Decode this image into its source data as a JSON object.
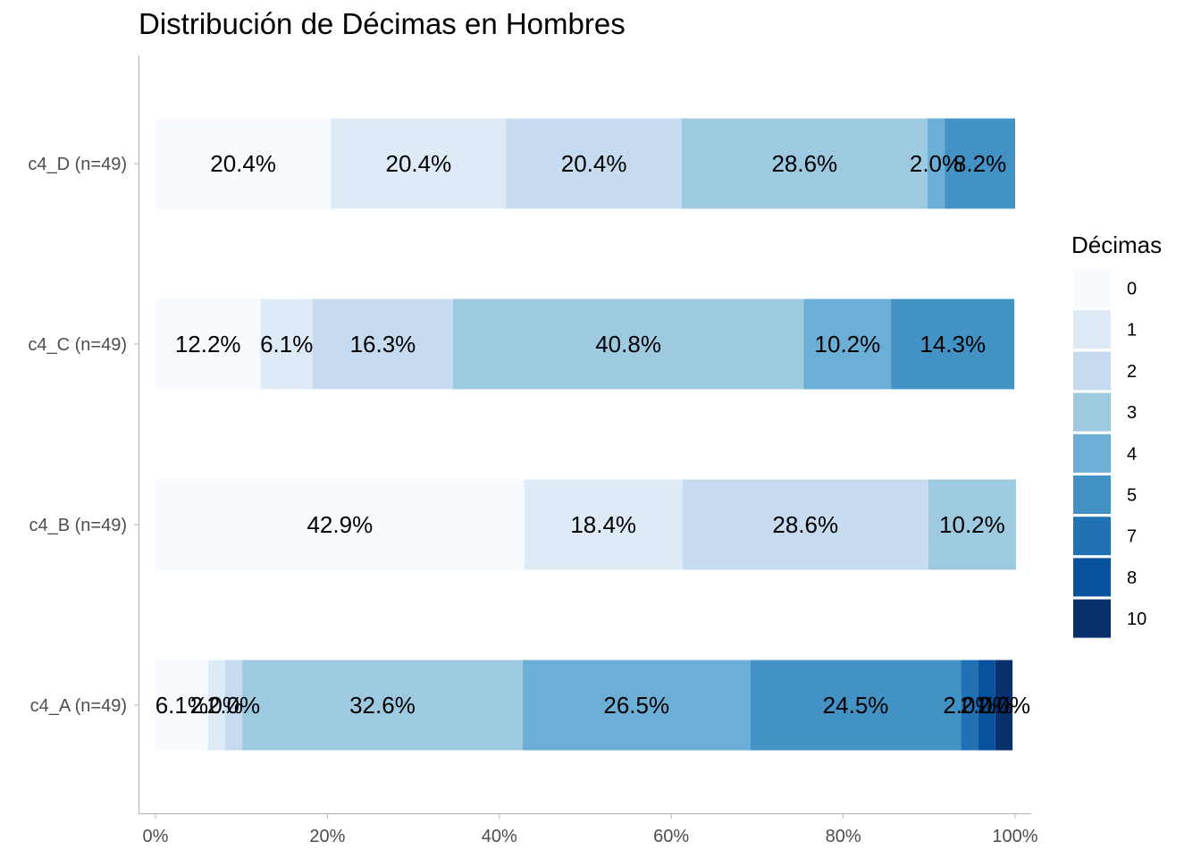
{
  "chart_data": {
    "type": "bar",
    "orientation": "horizontal",
    "stacked": "percent",
    "title": "Distribución de Décimas en Hombres",
    "xlabel": "",
    "ylabel": "",
    "xlim": [
      0,
      100
    ],
    "x_ticks": [
      "0%",
      "20%",
      "40%",
      "60%",
      "80%",
      "100%"
    ],
    "grid": false,
    "legend": {
      "title": "Décimas",
      "position": "right",
      "entries": [
        {
          "name": "0",
          "color": "#F7FBFF"
        },
        {
          "name": "1",
          "color": "#DEEBF7"
        },
        {
          "name": "2",
          "color": "#C6DBEF"
        },
        {
          "name": "3",
          "color": "#9ECAE1"
        },
        {
          "name": "4",
          "color": "#6BAED6"
        },
        {
          "name": "5",
          "color": "#4292C6"
        },
        {
          "name": "7",
          "color": "#2171B5"
        },
        {
          "name": "8",
          "color": "#08519C"
        },
        {
          "name": "10",
          "color": "#08306B"
        }
      ]
    },
    "categories": [
      "c4_D (n=49)",
      "c4_C (n=49)",
      "c4_B (n=49)",
      "c4_A (n=49)"
    ],
    "bars": [
      {
        "category": "c4_D (n=49)",
        "segments": [
          {
            "decima": "0",
            "value": 20.4,
            "label": "20.4%"
          },
          {
            "decima": "1",
            "value": 20.4,
            "label": "20.4%"
          },
          {
            "decima": "2",
            "value": 20.4,
            "label": "20.4%"
          },
          {
            "decima": "3",
            "value": 28.6,
            "label": "28.6%"
          },
          {
            "decima": "4",
            "value": 2.0,
            "label": "2.0%"
          },
          {
            "decima": "5",
            "value": 8.2,
            "label": "8.2%"
          }
        ]
      },
      {
        "category": "c4_C (n=49)",
        "segments": [
          {
            "decima": "0",
            "value": 12.2,
            "label": "12.2%"
          },
          {
            "decima": "1",
            "value": 6.1,
            "label": "6.1%"
          },
          {
            "decima": "2",
            "value": 16.3,
            "label": "16.3%"
          },
          {
            "decima": "3",
            "value": 40.8,
            "label": "40.8%"
          },
          {
            "decima": "4",
            "value": 10.2,
            "label": "10.2%"
          },
          {
            "decima": "5",
            "value": 14.3,
            "label": "14.3%"
          }
        ]
      },
      {
        "category": "c4_B (n=49)",
        "segments": [
          {
            "decima": "0",
            "value": 42.9,
            "label": "42.9%"
          },
          {
            "decima": "1",
            "value": 18.4,
            "label": "18.4%"
          },
          {
            "decima": "2",
            "value": 28.6,
            "label": "28.6%"
          },
          {
            "decima": "3",
            "value": 10.2,
            "label": "10.2%"
          }
        ]
      },
      {
        "category": "c4_A (n=49)",
        "segments": [
          {
            "decima": "0",
            "value": 6.1,
            "label": "6.1%"
          },
          {
            "decima": "1",
            "value": 2.0,
            "label": "2.0%"
          },
          {
            "decima": "2",
            "value": 2.0,
            "label": "2.0%"
          },
          {
            "decima": "3",
            "value": 32.6,
            "label": "32.6%"
          },
          {
            "decima": "4",
            "value": 26.5,
            "label": "26.5%"
          },
          {
            "decima": "5",
            "value": 24.5,
            "label": "24.5%"
          },
          {
            "decima": "7",
            "value": 2.0,
            "label": "2.0%"
          },
          {
            "decima": "8",
            "value": 2.0,
            "label": "2.0%"
          },
          {
            "decima": "10",
            "value": 2.0,
            "label": "2.0%"
          }
        ]
      }
    ]
  }
}
